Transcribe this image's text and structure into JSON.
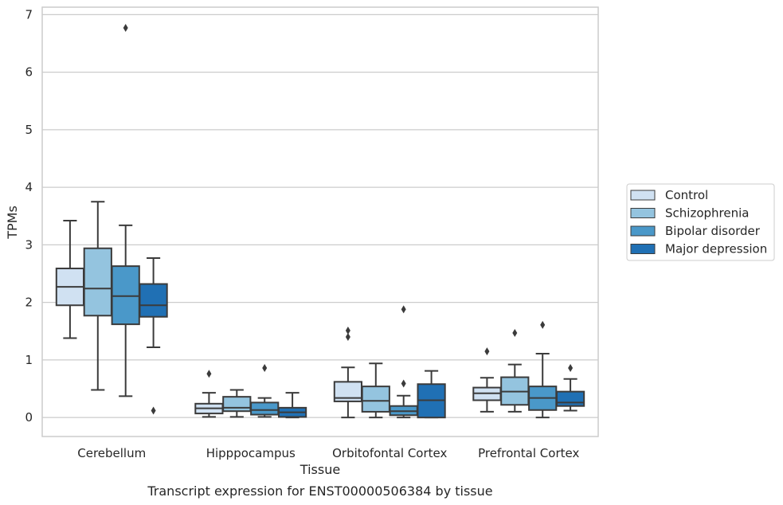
{
  "caption": "Transcript expression for ENST00000506384 by tissue",
  "chart_data": {
    "type": "box",
    "xlabel": "Tissue",
    "ylabel": "TPMs",
    "ylim": [
      -0.33,
      7.13
    ],
    "yticks": [
      0,
      1,
      2,
      3,
      4,
      5,
      6,
      7
    ],
    "grid": true,
    "legend_position": "right",
    "categories": [
      "Cerebellum",
      "Hipppocampus",
      "Orbitofontal Cortex",
      "Prefrontal Cortex"
    ],
    "colors": [
      "#d0e1f2",
      "#94c4df",
      "#4a98c9",
      "#2070b4"
    ],
    "series": [
      {
        "name": "Control",
        "boxes": [
          {
            "whisker_low": 1.38,
            "q1": 1.95,
            "median": 2.27,
            "q3": 2.59,
            "whisker_high": 3.42,
            "outliers": []
          },
          {
            "whisker_low": 0.01,
            "q1": 0.07,
            "median": 0.16,
            "q3": 0.24,
            "whisker_high": 0.43,
            "outliers": [
              0.76
            ]
          },
          {
            "whisker_low": 0.0,
            "q1": 0.28,
            "median": 0.34,
            "q3": 0.62,
            "whisker_high": 0.87,
            "outliers": [
              1.4,
              1.51
            ]
          },
          {
            "whisker_low": 0.1,
            "q1": 0.3,
            "median": 0.42,
            "q3": 0.52,
            "whisker_high": 0.69,
            "outliers": [
              1.15
            ]
          }
        ]
      },
      {
        "name": "Schizophrenia",
        "boxes": [
          {
            "whisker_low": 0.48,
            "q1": 1.77,
            "median": 2.24,
            "q3": 2.94,
            "whisker_high": 3.75,
            "outliers": []
          },
          {
            "whisker_low": 0.01,
            "q1": 0.11,
            "median": 0.17,
            "q3": 0.36,
            "whisker_high": 0.48,
            "outliers": []
          },
          {
            "whisker_low": 0.0,
            "q1": 0.1,
            "median": 0.29,
            "q3": 0.54,
            "whisker_high": 0.94,
            "outliers": []
          },
          {
            "whisker_low": 0.1,
            "q1": 0.22,
            "median": 0.45,
            "q3": 0.7,
            "whisker_high": 0.92,
            "outliers": [
              1.47
            ]
          }
        ]
      },
      {
        "name": "Bipolar disorder",
        "boxes": [
          {
            "whisker_low": 0.37,
            "q1": 1.62,
            "median": 2.11,
            "q3": 2.63,
            "whisker_high": 3.34,
            "outliers": [
              6.77
            ]
          },
          {
            "whisker_low": 0.01,
            "q1": 0.05,
            "median": 0.13,
            "q3": 0.26,
            "whisker_high": 0.34,
            "outliers": [
              0.86
            ]
          },
          {
            "whisker_low": 0.0,
            "q1": 0.04,
            "median": 0.11,
            "q3": 0.2,
            "whisker_high": 0.38,
            "outliers": [
              0.59,
              1.88
            ]
          },
          {
            "whisker_low": 0.0,
            "q1": 0.13,
            "median": 0.34,
            "q3": 0.54,
            "whisker_high": 1.11,
            "outliers": [
              1.61
            ]
          }
        ]
      },
      {
        "name": "Major depression",
        "boxes": [
          {
            "whisker_low": 1.22,
            "q1": 1.75,
            "median": 1.95,
            "q3": 2.32,
            "whisker_high": 2.77,
            "outliers": [
              0.12
            ]
          },
          {
            "whisker_low": 0.0,
            "q1": 0.01,
            "median": 0.09,
            "q3": 0.17,
            "whisker_high": 0.43,
            "outliers": []
          },
          {
            "whisker_low": 0.0,
            "q1": 0.0,
            "median": 0.3,
            "q3": 0.58,
            "whisker_high": 0.81,
            "outliers": []
          },
          {
            "whisker_low": 0.12,
            "q1": 0.2,
            "median": 0.26,
            "q3": 0.45,
            "whisker_high": 0.67,
            "outliers": [
              0.86
            ]
          }
        ]
      }
    ]
  }
}
